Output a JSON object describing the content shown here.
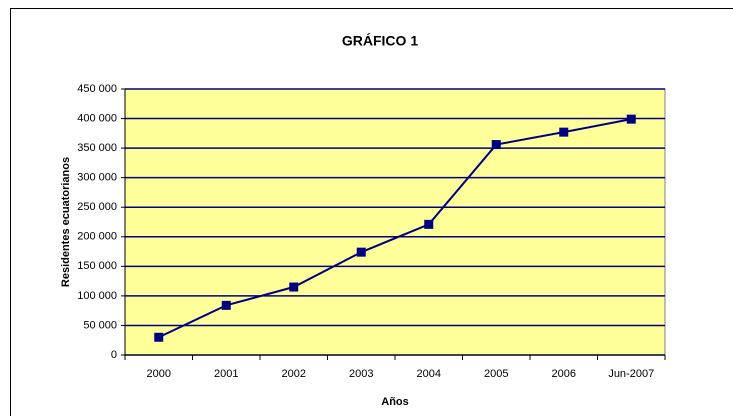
{
  "chart_data": {
    "type": "line",
    "title": "GRÁFICO 1",
    "x_label": "Años",
    "y_label": "Residentes ecuatorianos",
    "categories": [
      "2000",
      "2001",
      "2002",
      "2003",
      "2004",
      "2005",
      "2006",
      "Jun-2007"
    ],
    "series": [
      {
        "name": "Residentes ecuatorianos",
        "color": "#000080",
        "values": [
          30000,
          84000,
          115000,
          174000,
          221000,
          356000,
          377000,
          399000
        ]
      }
    ],
    "ylim": [
      0,
      450000
    ],
    "yticks": [
      0,
      {
        "value": 50000,
        "label": "50 000"
      },
      {
        "value": 100000,
        "label": "100 000"
      },
      {
        "value": 150000,
        "label": "150 000"
      },
      {
        "value": 200000,
        "label": "200 000"
      },
      {
        "value": 250000,
        "label": "250 000"
      },
      {
        "value": 300000,
        "label": "300 000"
      },
      {
        "value": 350000,
        "label": "350 000"
      },
      {
        "value": 400000,
        "label": "400 000"
      },
      {
        "value": 450000,
        "label": "450 000"
      }
    ],
    "grid": true,
    "plot_background": "#ffff99",
    "grid_color": "#000080"
  }
}
